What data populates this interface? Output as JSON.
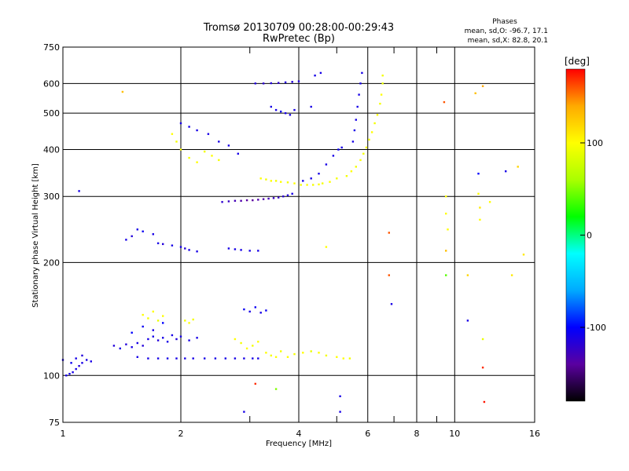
{
  "chart_data": {
    "type": "scatter",
    "title": "Tromsø 20130709 00:28:00-00:29:43",
    "subtitle": "RwPretec (Bp)",
    "xlabel": "Frequency [MHz]",
    "ylabel": "Stationary phase Virtual Height [km]",
    "x_scale": "log",
    "y_scale": "log",
    "xlim": [
      1,
      16
    ],
    "ylim": [
      75,
      750
    ],
    "x_ticks": [
      1,
      2,
      4,
      6,
      8,
      10,
      16
    ],
    "y_ticks": [
      75,
      100,
      200,
      300,
      400,
      500,
      600,
      750
    ],
    "x_minor_ticks": [
      3,
      5,
      7,
      9
    ],
    "grid": true,
    "legend": {
      "title": "Phases",
      "lines": [
        "mean, sd,O: -96.7, 17.1",
        "mean, sd,X:  82.8, 20.1"
      ],
      "placement": "top-right"
    },
    "colorbar": {
      "label": "[deg]",
      "ticks": [
        -100,
        0,
        100
      ],
      "range": [
        -180,
        180
      ],
      "colors": [
        "#000000",
        "#5a00a0",
        "#0000ff",
        "#00aaff",
        "#00ffff",
        "#00ff00",
        "#aaff00",
        "#ffff00",
        "#ffaa00",
        "#ff0000"
      ]
    },
    "series": [
      {
        "name": "",
        "note": "points are [frequency MHz, virtual height km, phase deg]",
        "points": [
          [
            1.0,
            110,
            -110
          ],
          [
            1.02,
            100,
            -110
          ],
          [
            1.04,
            101,
            -110
          ],
          [
            1.06,
            102,
            -110
          ],
          [
            1.08,
            104,
            -110
          ],
          [
            1.1,
            106,
            -115
          ],
          [
            1.12,
            108,
            -110
          ],
          [
            1.15,
            110,
            -110
          ],
          [
            1.18,
            109,
            -110
          ],
          [
            1.05,
            108,
            -105
          ],
          [
            1.08,
            111,
            -110
          ],
          [
            1.12,
            113,
            -115
          ],
          [
            1.35,
            120,
            -115
          ],
          [
            1.4,
            118,
            -110
          ],
          [
            1.45,
            121,
            -115
          ],
          [
            1.5,
            119,
            -110
          ],
          [
            1.55,
            122,
            -110
          ],
          [
            1.6,
            120,
            -115
          ],
          [
            1.65,
            125,
            -110
          ],
          [
            1.7,
            127,
            -110
          ],
          [
            1.75,
            124,
            -115
          ],
          [
            1.8,
            126,
            -110
          ],
          [
            1.85,
            123,
            -110
          ],
          [
            1.9,
            128,
            -110
          ],
          [
            1.95,
            125,
            -115
          ],
          [
            2.0,
            127,
            -110
          ],
          [
            2.1,
            124,
            -110
          ],
          [
            2.2,
            126,
            -110
          ],
          [
            1.5,
            130,
            -100
          ],
          [
            1.6,
            135,
            -105
          ],
          [
            1.7,
            132,
            -110
          ],
          [
            1.8,
            138,
            -100
          ],
          [
            1.55,
            112,
            -110
          ],
          [
            1.65,
            111,
            -110
          ],
          [
            1.75,
            111,
            -110
          ],
          [
            1.85,
            111,
            -110
          ],
          [
            1.95,
            111,
            -110
          ],
          [
            2.05,
            111,
            -110
          ],
          [
            2.15,
            111,
            -110
          ],
          [
            2.3,
            111,
            -110
          ],
          [
            2.45,
            111,
            -110
          ],
          [
            2.6,
            111,
            -110
          ],
          [
            2.75,
            111,
            -110
          ],
          [
            2.9,
            111,
            -110
          ],
          [
            3.05,
            111,
            -110
          ],
          [
            3.15,
            111,
            -110
          ],
          [
            1.6,
            145,
            100
          ],
          [
            1.65,
            142,
            95
          ],
          [
            1.7,
            148,
            100
          ],
          [
            1.75,
            140,
            90
          ],
          [
            1.8,
            144,
            100
          ],
          [
            2.05,
            140,
            95
          ],
          [
            2.1,
            138,
            100
          ],
          [
            2.15,
            141,
            95
          ],
          [
            2.75,
            125,
            100
          ],
          [
            2.85,
            122,
            95
          ],
          [
            2.95,
            118,
            100
          ],
          [
            3.05,
            120,
            95
          ],
          [
            3.15,
            123,
            100
          ],
          [
            3.3,
            115,
            100
          ],
          [
            3.4,
            113,
            95
          ],
          [
            3.5,
            112,
            100
          ],
          [
            3.6,
            116,
            95
          ],
          [
            3.75,
            112,
            100
          ],
          [
            3.9,
            114,
            95
          ],
          [
            4.1,
            115,
            100
          ],
          [
            4.3,
            116,
            90
          ],
          [
            4.5,
            115,
            100
          ],
          [
            4.7,
            113,
            95
          ],
          [
            5.0,
            112,
            100
          ],
          [
            5.2,
            111,
            100
          ],
          [
            5.4,
            111,
            95
          ],
          [
            2.9,
            150,
            -105
          ],
          [
            3.0,
            148,
            -110
          ],
          [
            3.1,
            152,
            -105
          ],
          [
            3.2,
            147,
            -110
          ],
          [
            3.3,
            149,
            -105
          ],
          [
            1.45,
            230,
            -110
          ],
          [
            1.5,
            235,
            -115
          ],
          [
            1.55,
            245,
            -110
          ],
          [
            1.6,
            242,
            -105
          ],
          [
            1.7,
            238,
            -110
          ],
          [
            1.75,
            225,
            -110
          ],
          [
            1.8,
            224,
            -115
          ],
          [
            1.9,
            222,
            -110
          ],
          [
            2.0,
            220,
            -110
          ],
          [
            2.05,
            218,
            -115
          ],
          [
            2.1,
            216,
            -110
          ],
          [
            2.2,
            214,
            -110
          ],
          [
            2.65,
            218,
            -110
          ],
          [
            2.75,
            217,
            -110
          ],
          [
            2.85,
            216,
            -110
          ],
          [
            3.0,
            215,
            -110
          ],
          [
            3.15,
            215,
            -110
          ],
          [
            4.7,
            220,
            100
          ],
          [
            2.55,
            290,
            -120
          ],
          [
            2.65,
            291,
            -125
          ],
          [
            2.75,
            292,
            -130
          ],
          [
            2.85,
            292,
            -135
          ],
          [
            2.95,
            293,
            -140
          ],
          [
            3.05,
            293,
            -140
          ],
          [
            3.15,
            294,
            -135
          ],
          [
            3.25,
            295,
            -135
          ],
          [
            3.35,
            296,
            -130
          ],
          [
            3.45,
            297,
            -125
          ],
          [
            3.55,
            298,
            -125
          ],
          [
            3.65,
            300,
            -120
          ],
          [
            3.75,
            302,
            -115
          ],
          [
            3.85,
            305,
            -110
          ],
          [
            3.2,
            335,
            100
          ],
          [
            3.3,
            333,
            95
          ],
          [
            3.4,
            330,
            100
          ],
          [
            3.5,
            330,
            95
          ],
          [
            3.6,
            328,
            100
          ],
          [
            3.75,
            327,
            95
          ],
          [
            3.9,
            325,
            100
          ],
          [
            4.05,
            322,
            95
          ],
          [
            4.2,
            322,
            100
          ],
          [
            4.35,
            322,
            95
          ],
          [
            4.5,
            323,
            100
          ],
          [
            4.6,
            325,
            95
          ],
          [
            4.8,
            328,
            100
          ],
          [
            5.0,
            335,
            95
          ],
          [
            4.1,
            330,
            -110
          ],
          [
            4.3,
            335,
            -110
          ],
          [
            4.5,
            345,
            -110
          ],
          [
            4.7,
            365,
            -110
          ],
          [
            4.9,
            385,
            -110
          ],
          [
            5.05,
            400,
            -105
          ],
          [
            5.15,
            405,
            -110
          ],
          [
            5.3,
            340,
            95
          ],
          [
            5.45,
            350,
            100
          ],
          [
            5.6,
            360,
            95
          ],
          [
            5.75,
            375,
            100
          ],
          [
            5.85,
            390,
            95
          ],
          [
            5.95,
            405,
            100
          ],
          [
            6.05,
            425,
            95
          ],
          [
            6.15,
            445,
            100
          ],
          [
            6.25,
            470,
            95
          ],
          [
            6.35,
            495,
            100
          ],
          [
            6.45,
            530,
            95
          ],
          [
            6.5,
            560,
            100
          ],
          [
            6.55,
            600,
            90
          ],
          [
            6.55,
            630,
            95
          ],
          [
            5.5,
            420,
            -110
          ],
          [
            5.55,
            450,
            -110
          ],
          [
            5.6,
            480,
            -110
          ],
          [
            5.65,
            520,
            -110
          ],
          [
            5.7,
            560,
            -110
          ],
          [
            5.75,
            600,
            -110
          ],
          [
            5.8,
            640,
            -110
          ],
          [
            1.9,
            440,
            100
          ],
          [
            1.95,
            420,
            95
          ],
          [
            2.0,
            400,
            100
          ],
          [
            2.1,
            380,
            95
          ],
          [
            2.2,
            370,
            100
          ],
          [
            2.3,
            395,
            95
          ],
          [
            2.4,
            385,
            100
          ],
          [
            2.5,
            375,
            95
          ],
          [
            2.0,
            470,
            -110
          ],
          [
            2.1,
            460,
            -110
          ],
          [
            2.2,
            450,
            -110
          ],
          [
            2.35,
            440,
            -110
          ],
          [
            2.5,
            420,
            -110
          ],
          [
            2.65,
            410,
            -110
          ],
          [
            2.8,
            390,
            -110
          ],
          [
            3.1,
            600,
            -115
          ],
          [
            3.25,
            600,
            -120
          ],
          [
            3.4,
            601,
            -115
          ],
          [
            3.55,
            602,
            -120
          ],
          [
            3.7,
            604,
            -115
          ],
          [
            3.85,
            606,
            -115
          ],
          [
            4.0,
            608,
            -115
          ],
          [
            3.4,
            520,
            -110
          ],
          [
            3.5,
            510,
            -110
          ],
          [
            3.6,
            505,
            -105
          ],
          [
            3.7,
            500,
            -110
          ],
          [
            3.8,
            495,
            -110
          ],
          [
            3.9,
            510,
            -110
          ],
          [
            4.3,
            520,
            -110
          ],
          [
            4.4,
            630,
            -110
          ],
          [
            4.55,
            640,
            -110
          ],
          [
            1.1,
            310,
            -110
          ],
          [
            1.42,
            570,
            130
          ],
          [
            6.8,
            240,
            160
          ],
          [
            6.8,
            185,
            160
          ],
          [
            6.9,
            155,
            -110
          ],
          [
            9.5,
            300,
            100
          ],
          [
            9.5,
            270,
            100
          ],
          [
            9.6,
            245,
            100
          ],
          [
            9.5,
            215,
            130
          ],
          [
            9.5,
            185,
            40
          ],
          [
            9.4,
            535,
            160
          ],
          [
            11.5,
            345,
            -100
          ],
          [
            11.5,
            305,
            100
          ],
          [
            11.6,
            280,
            110
          ],
          [
            11.6,
            260,
            100
          ],
          [
            11.3,
            565,
            130
          ],
          [
            11.8,
            590,
            140
          ],
          [
            11.8,
            125,
            90
          ],
          [
            11.8,
            105,
            170
          ],
          [
            11.9,
            85,
            175
          ],
          [
            12.3,
            290,
            100
          ],
          [
            10.8,
            185,
            120
          ],
          [
            10.8,
            140,
            -110
          ],
          [
            13.5,
            350,
            -110
          ],
          [
            14.5,
            360,
            120
          ],
          [
            15.0,
            210,
            110
          ],
          [
            14.0,
            185,
            110
          ],
          [
            5.1,
            88,
            -110
          ],
          [
            5.1,
            80,
            -110
          ],
          [
            3.1,
            95,
            170
          ],
          [
            2.9,
            80,
            -110
          ],
          [
            3.5,
            92,
            50
          ]
        ]
      }
    ]
  }
}
